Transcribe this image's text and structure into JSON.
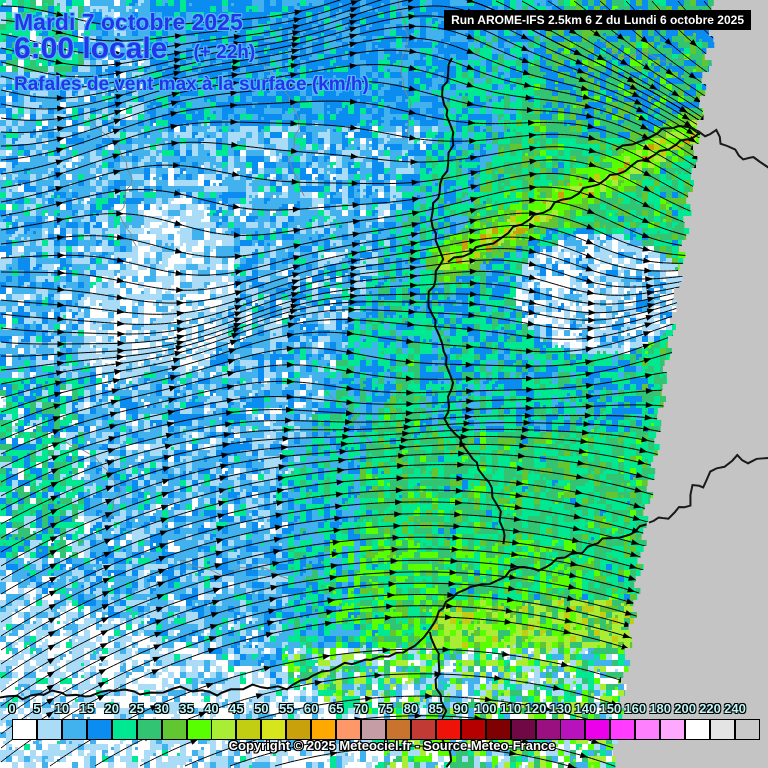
{
  "header": {
    "date": "Mardi 7 octobre 2025",
    "time": "6:00 locale",
    "time_offset": "(+ 22h)",
    "subtitle": "Rafales de vent max à la surface (km/h)",
    "run_info": "Run AROME-IFS 2.5km 6 Z du Lundi 6 octobre 2025"
  },
  "legend": {
    "values": [
      0,
      5,
      10,
      15,
      20,
      25,
      30,
      35,
      40,
      45,
      50,
      55,
      60,
      65,
      70,
      75,
      80,
      85,
      90,
      100,
      110,
      120,
      130,
      140,
      150,
      160,
      180,
      200,
      220,
      240
    ],
    "colors": [
      "#FFFFFF",
      "#AADCF7",
      "#42B2EE",
      "#0A8CF0",
      "#00E892",
      "#32C473",
      "#62C632",
      "#58FF00",
      "#A9EE35",
      "#C2CE12",
      "#D7E51C",
      "#C9A10A",
      "#FFA800",
      "#FF9868",
      "#C59DA5",
      "#C8742E",
      "#C23A34",
      "#EE1208",
      "#B60000",
      "#7E0000",
      "#700845",
      "#9A1080",
      "#B812BC",
      "#EC00EC",
      "#FF3CFF",
      "#FF80FF",
      "#FFA8FF",
      "#FFFFFF",
      "#E4E4E4",
      "#CACACA"
    ]
  },
  "footer": {
    "copyright": "Copyright © 2025 Meteociel.fr - Source Meteo-France"
  },
  "colors": {
    "title_text": "#2236E8",
    "title_halo": "#55B9FF",
    "legend_label": "#BDF8F8",
    "run_box_bg": "#000000",
    "run_box_text": "#FFFFFF",
    "no_data_gray": "#C4C4C4",
    "streamline": "#000000"
  }
}
